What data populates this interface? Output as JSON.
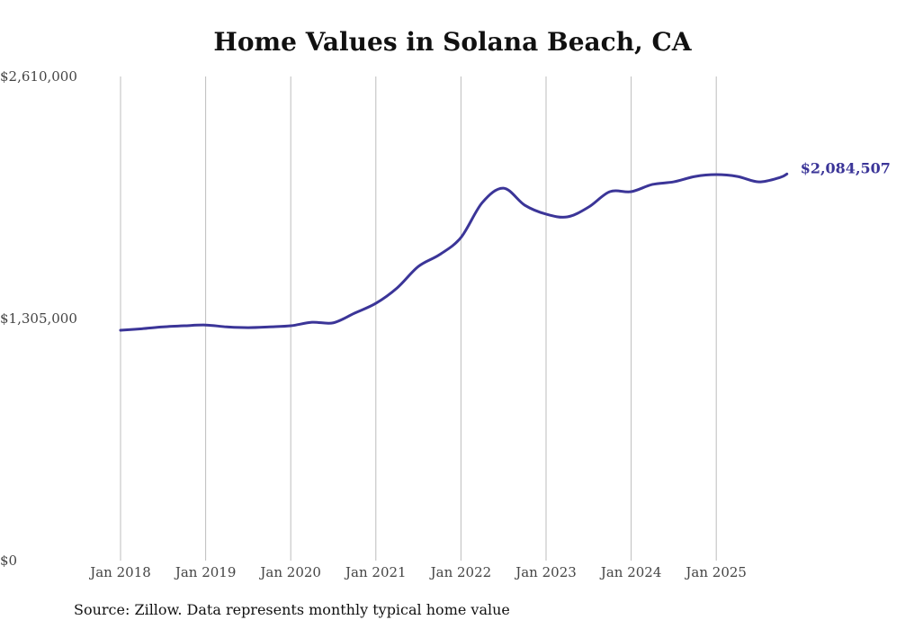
{
  "chart_data": {
    "type": "line",
    "title": "Home Values in Solana Beach, CA",
    "source": "Source: Zillow. Data represents monthly typical home value",
    "xlabel": "",
    "ylabel": "",
    "ylim": [
      0,
      2610000
    ],
    "xlim": [
      2018.0,
      2025.85
    ],
    "y_ticks": [
      0,
      1305000,
      2610000
    ],
    "y_tick_labels": [
      "$0",
      "$1,305,000",
      "$2,610,000"
    ],
    "x_ticks": [
      2018,
      2019,
      2020,
      2021,
      2022,
      2023,
      2024,
      2025
    ],
    "x_tick_labels": [
      "Jan 2018",
      "Jan 2019",
      "Jan 2020",
      "Jan 2021",
      "Jan 2022",
      "Jan 2023",
      "Jan 2024",
      "Jan 2025"
    ],
    "grid": "vertical",
    "line_color": "#3b3598",
    "end_label": "$2,084,507",
    "series": [
      {
        "name": "Typical home value",
        "x": [
          2018.0,
          2018.25,
          2018.5,
          2018.75,
          2019.0,
          2019.25,
          2019.5,
          2019.75,
          2020.0,
          2020.25,
          2020.5,
          2020.75,
          2021.0,
          2021.25,
          2021.5,
          2021.75,
          2022.0,
          2022.25,
          2022.5,
          2022.75,
          2023.0,
          2023.25,
          2023.5,
          2023.75,
          2024.0,
          2024.25,
          2024.5,
          2024.75,
          2025.0,
          2025.25,
          2025.5,
          2025.75,
          2025.83
        ],
        "values": [
          1242000,
          1250000,
          1260000,
          1266000,
          1270000,
          1260000,
          1256000,
          1260000,
          1266000,
          1285000,
          1282000,
          1334000,
          1387000,
          1470000,
          1586000,
          1650000,
          1742000,
          1930000,
          2008000,
          1916000,
          1868000,
          1853000,
          1906000,
          1989000,
          1989000,
          2028000,
          2042000,
          2071000,
          2081000,
          2071000,
          2042000,
          2066000,
          2084507
        ]
      }
    ]
  }
}
